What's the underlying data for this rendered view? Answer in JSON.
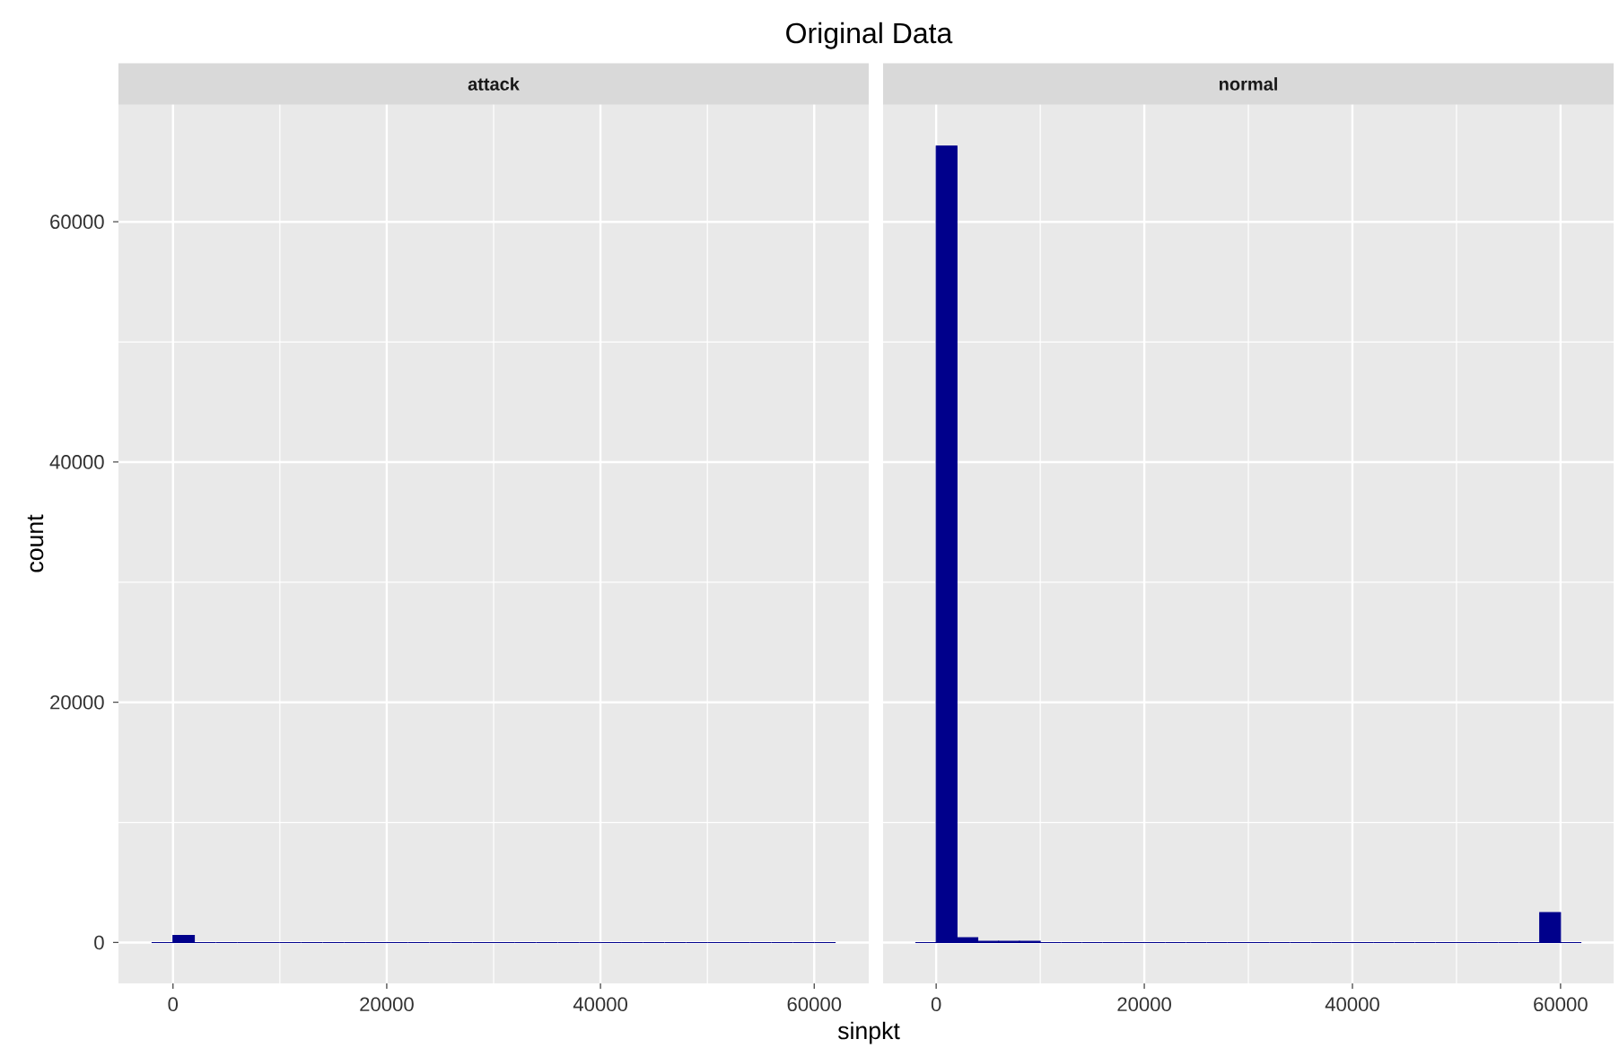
{
  "chart_data": [
    {
      "type": "histogram",
      "title": "attack",
      "xlabel": "sinpkt",
      "ylabel": "count",
      "annotations": [
        "Original Data"
      ],
      "color": "#00008b",
      "bins": [
        -2000,
        0,
        2000,
        4000,
        6000,
        8000,
        10000,
        12000,
        14000,
        16000,
        18000,
        20000,
        22000,
        24000,
        26000,
        28000,
        30000,
        32000,
        34000,
        36000,
        38000,
        40000,
        42000,
        44000,
        46000,
        48000,
        50000,
        52000,
        54000,
        56000,
        58000,
        60000,
        62000
      ],
      "values": [
        0,
        600,
        0,
        0,
        0,
        0,
        0,
        0,
        0,
        0,
        0,
        0,
        0,
        0,
        0,
        0,
        0,
        0,
        0,
        0,
        0,
        0,
        0,
        0,
        0,
        0,
        0,
        0,
        0,
        0,
        0,
        0
      ],
      "xlim": [
        -5100,
        65100
      ],
      "ylim": [
        -3400,
        69800
      ],
      "xticks": [
        0,
        20000,
        40000,
        60000
      ],
      "yticks": [
        0,
        20000,
        40000,
        60000
      ],
      "grid": true
    },
    {
      "type": "histogram",
      "title": "normal",
      "color": "#00008b",
      "bins": [
        -2000,
        0,
        2000,
        4000,
        6000,
        8000,
        10000,
        12000,
        14000,
        16000,
        18000,
        20000,
        22000,
        24000,
        26000,
        28000,
        30000,
        32000,
        34000,
        36000,
        38000,
        40000,
        42000,
        44000,
        46000,
        48000,
        50000,
        52000,
        54000,
        56000,
        58000,
        60000,
        62000
      ],
      "values": [
        0,
        66300,
        400,
        100,
        100,
        100,
        0,
        0,
        0,
        0,
        0,
        0,
        0,
        0,
        0,
        0,
        0,
        0,
        0,
        0,
        0,
        0,
        0,
        0,
        0,
        0,
        0,
        0,
        0,
        0,
        2500,
        0
      ],
      "xlim": [
        -5100,
        65100
      ],
      "ylim": [
        -3400,
        69800
      ],
      "xticks": [
        0,
        20000,
        40000,
        60000
      ],
      "yticks": [
        0,
        20000,
        40000,
        60000
      ],
      "grid": true,
      "tick_labels": "x"
    }
  ]
}
